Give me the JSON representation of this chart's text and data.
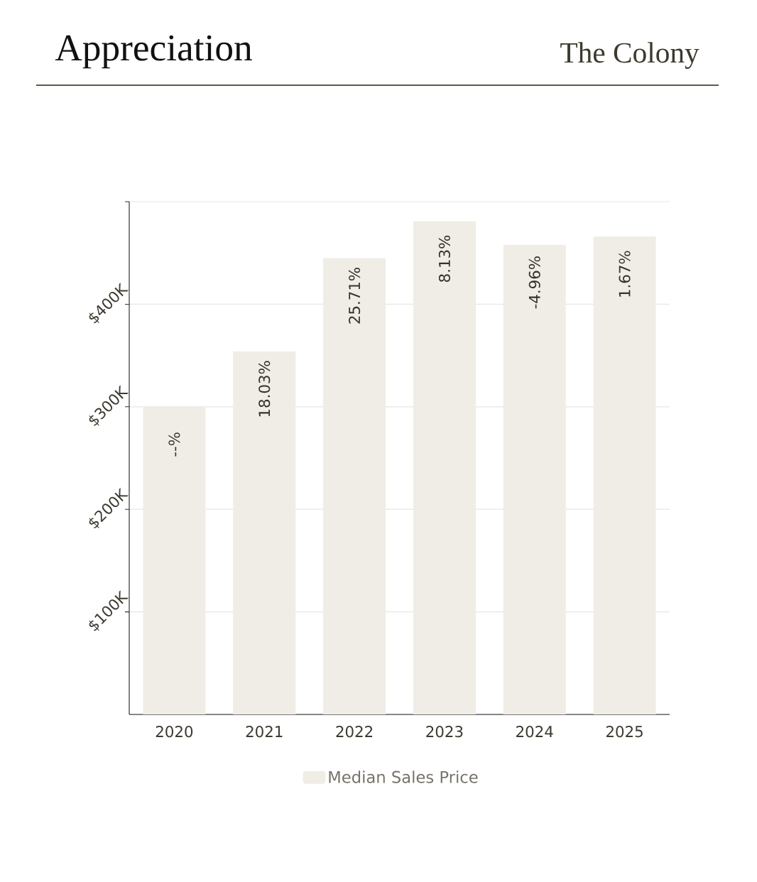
{
  "chart_data": {
    "type": "bar",
    "title": "Appreciation",
    "subtitle": "The Colony",
    "categories": [
      "2020",
      "2021",
      "2022",
      "2023",
      "2024",
      "2025"
    ],
    "series": [
      {
        "name": "Median Sales Price",
        "color": "#f0ede6",
        "values": [
          300000,
          354000,
          445000,
          481000,
          458000,
          466000
        ]
      }
    ],
    "annotations": [
      {
        "text": "--%",
        "x": "2020",
        "y": 300000
      },
      {
        "text": "18.03%",
        "x": "2021",
        "y": 354000
      },
      {
        "text": "25.71%",
        "x": "2022",
        "y": 445000
      },
      {
        "text": "8.13%",
        "x": "2023",
        "y": 481000
      },
      {
        "text": "-4.96%",
        "x": "2024",
        "y": 458000
      },
      {
        "text": "1.67%",
        "x": "2025",
        "y": 466000
      }
    ],
    "ylim": [
      0,
      500000
    ],
    "yticks": [
      {
        "value": 100000,
        "label": "$100K"
      },
      {
        "value": 200000,
        "label": "$200K"
      },
      {
        "value": 300000,
        "label": "$300K"
      },
      {
        "value": 400000,
        "label": "$400K"
      },
      {
        "value": 500000,
        "label": null
      }
    ],
    "grid": "y",
    "legend": "bottom"
  }
}
